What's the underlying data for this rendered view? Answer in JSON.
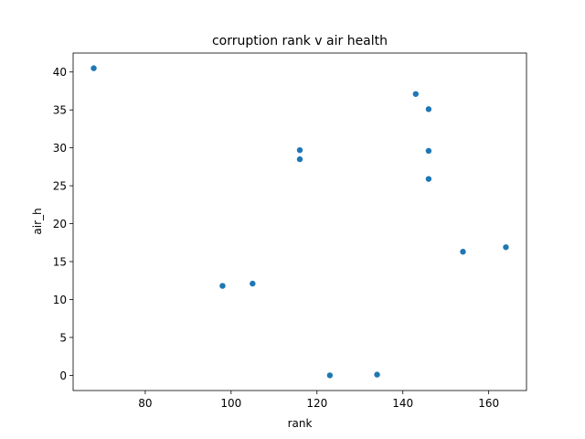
{
  "chart_data": {
    "type": "scatter",
    "title": "corruption rank v air health",
    "xlabel": "rank",
    "ylabel": "air_h",
    "xlim": [
      63.2,
      168.8
    ],
    "ylim": [
      -2.0,
      42.5
    ],
    "xticks": [
      80,
      100,
      120,
      140,
      160
    ],
    "yticks": [
      0,
      5,
      10,
      15,
      20,
      25,
      30,
      35,
      40
    ],
    "grid": false,
    "legend": "none",
    "color": "#1f77b4",
    "points": [
      {
        "x": 68,
        "y": 40.5
      },
      {
        "x": 98,
        "y": 11.8
      },
      {
        "x": 105,
        "y": 12.1
      },
      {
        "x": 116,
        "y": 29.7
      },
      {
        "x": 116,
        "y": 28.5
      },
      {
        "x": 123,
        "y": 0.0
      },
      {
        "x": 134,
        "y": 0.1
      },
      {
        "x": 143,
        "y": 37.1
      },
      {
        "x": 146,
        "y": 35.1
      },
      {
        "x": 146,
        "y": 29.6
      },
      {
        "x": 146,
        "y": 25.9
      },
      {
        "x": 154,
        "y": 16.3
      },
      {
        "x": 164,
        "y": 16.9
      }
    ]
  }
}
